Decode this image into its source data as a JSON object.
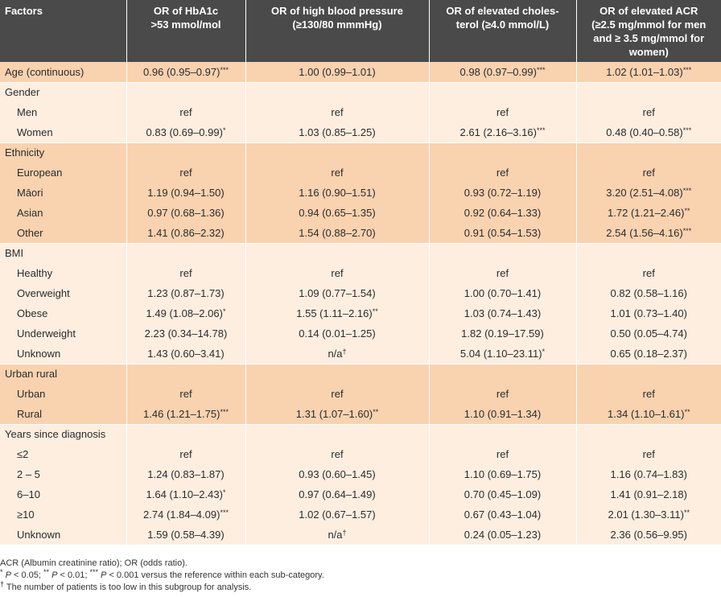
{
  "header": {
    "factors": "Factors",
    "col1": [
      "OR of HbA1c",
      ">53 mmol/mol"
    ],
    "col2": [
      "OR of high blood pressure",
      "(≥130/80 mmmHg)"
    ],
    "col3": [
      "OR of elevated choles-",
      "terol (≥4.0 mmol/L)"
    ],
    "col4": [
      "OR of elevated ACR",
      "(≥2.5 mg/mmol for men",
      "and ≥ 3.5 mg/mmol for",
      "women)"
    ]
  },
  "rows": [
    {
      "label": "Age (continuous)",
      "indent": false,
      "band": "dark",
      "cells": [
        {
          "v": "0.96 (0.95–0.97)",
          "s": "***"
        },
        {
          "v": "1.00 (0.99–1.01)",
          "s": ""
        },
        {
          "v": "0.98 (0.97–0.99)",
          "s": "***"
        },
        {
          "v": "1.02 (1.01–1.03)",
          "s": "***"
        }
      ]
    },
    {
      "label": "Gender",
      "indent": false,
      "band": "light",
      "cells": null
    },
    {
      "label": "Men",
      "indent": true,
      "band": "light",
      "cells": [
        {
          "v": "ref",
          "s": ""
        },
        {
          "v": "ref",
          "s": ""
        },
        {
          "v": "ref",
          "s": ""
        },
        {
          "v": "ref",
          "s": ""
        }
      ]
    },
    {
      "label": "Women",
      "indent": true,
      "band": "light",
      "cells": [
        {
          "v": "0.83 (0.69–0.99)",
          "s": "*"
        },
        {
          "v": "1.03 (0.85–1.25)",
          "s": ""
        },
        {
          "v": "2.61 (2.16–3.16)",
          "s": "***"
        },
        {
          "v": "0.48 (0.40–0.58)",
          "s": "***"
        }
      ]
    },
    {
      "label": "Ethnicity",
      "indent": false,
      "band": "dark",
      "cells": null
    },
    {
      "label": "European",
      "indent": true,
      "band": "dark",
      "cells": [
        {
          "v": "ref",
          "s": ""
        },
        {
          "v": "ref",
          "s": ""
        },
        {
          "v": "ref",
          "s": ""
        },
        {
          "v": "ref",
          "s": ""
        }
      ]
    },
    {
      "label": "Māori",
      "indent": true,
      "band": "dark",
      "cells": [
        {
          "v": "1.19 (0.94–1.50)",
          "s": ""
        },
        {
          "v": "1.16 (0.90–1.51)",
          "s": ""
        },
        {
          "v": "0.93 (0.72–1.19)",
          "s": ""
        },
        {
          "v": "3.20 (2.51–4.08)",
          "s": "***"
        }
      ]
    },
    {
      "label": "Asian",
      "indent": true,
      "band": "dark",
      "cells": [
        {
          "v": "0.97 (0.68–1.36)",
          "s": ""
        },
        {
          "v": "0.94 (0.65–1.35)",
          "s": ""
        },
        {
          "v": "0.92 (0.64–1.33)",
          "s": ""
        },
        {
          "v": "1.72 (1.21–2.46)",
          "s": "**"
        }
      ]
    },
    {
      "label": "Other",
      "indent": true,
      "band": "dark",
      "cells": [
        {
          "v": "1.41 (0.86–2.32)",
          "s": ""
        },
        {
          "v": "1.54 (0.88–2.70)",
          "s": ""
        },
        {
          "v": "0.91 (0.54–1.53)",
          "s": ""
        },
        {
          "v": "2.54 (1.56–4.16)",
          "s": "***"
        }
      ]
    },
    {
      "label": "BMI",
      "indent": false,
      "band": "light",
      "cells": null
    },
    {
      "label": "Healthy",
      "indent": true,
      "band": "light",
      "cells": [
        {
          "v": "ref",
          "s": ""
        },
        {
          "v": "ref",
          "s": ""
        },
        {
          "v": "ref",
          "s": ""
        },
        {
          "v": "ref",
          "s": ""
        }
      ]
    },
    {
      "label": "Overweight",
      "indent": true,
      "band": "light",
      "cells": [
        {
          "v": "1.23 (0.87–1.73)",
          "s": ""
        },
        {
          "v": "1.09 (0.77–1.54)",
          "s": ""
        },
        {
          "v": "1.00 (0.70–1.41)",
          "s": ""
        },
        {
          "v": "0.82 (0.58–1.16)",
          "s": ""
        }
      ]
    },
    {
      "label": "Obese",
      "indent": true,
      "band": "light",
      "cells": [
        {
          "v": "1.49 (1.08–2.06)",
          "s": "*"
        },
        {
          "v": "1.55 (1.11–2.16)",
          "s": "**"
        },
        {
          "v": "1.03 (0.74–1.43)",
          "s": ""
        },
        {
          "v": "1.01 (0.73–1.40)",
          "s": ""
        }
      ]
    },
    {
      "label": "Underweight",
      "indent": true,
      "band": "light",
      "cells": [
        {
          "v": "2.23 (0.34–14.78)",
          "s": ""
        },
        {
          "v": "0.14 (0.01–1.25)",
          "s": ""
        },
        {
          "v": "1.82 (0.19–17.59)",
          "s": ""
        },
        {
          "v": "0.50 (0.05–4.74)",
          "s": ""
        }
      ]
    },
    {
      "label": "Unknown",
      "indent": true,
      "band": "light",
      "cells": [
        {
          "v": "1.43 (0.60–3.41)",
          "s": ""
        },
        {
          "v": "n/a",
          "s": "†"
        },
        {
          "v": "5.04 (1.10–23.11)",
          "s": "*"
        },
        {
          "v": "0.65 (0.18–2.37)",
          "s": ""
        }
      ]
    },
    {
      "label": "Urban rural",
      "indent": false,
      "band": "dark",
      "cells": null
    },
    {
      "label": "Urban",
      "indent": true,
      "band": "dark",
      "cells": [
        {
          "v": "ref",
          "s": ""
        },
        {
          "v": "ref",
          "s": ""
        },
        {
          "v": "ref",
          "s": ""
        },
        {
          "v": "ref",
          "s": ""
        }
      ]
    },
    {
      "label": "Rural",
      "indent": true,
      "band": "dark",
      "cells": [
        {
          "v": "1.46 (1.21–1.75)",
          "s": "***"
        },
        {
          "v": "1.31 (1.07–1.60)",
          "s": "**"
        },
        {
          "v": "1.10 (0.91–1.34)",
          "s": ""
        },
        {
          "v": "1.34 (1.10–1.61)",
          "s": "**"
        }
      ]
    },
    {
      "label": "Years since diagnosis",
      "indent": false,
      "band": "light",
      "cells": null
    },
    {
      "label": "≤2",
      "indent": true,
      "band": "light",
      "cells": [
        {
          "v": "ref",
          "s": ""
        },
        {
          "v": "ref",
          "s": ""
        },
        {
          "v": "ref",
          "s": ""
        },
        {
          "v": "ref",
          "s": ""
        }
      ]
    },
    {
      "label": "2 – 5",
      "indent": true,
      "band": "light",
      "cells": [
        {
          "v": "1.24 (0.83–1.87)",
          "s": ""
        },
        {
          "v": "0.93 (0.60–1.45)",
          "s": ""
        },
        {
          "v": "1.10 (0.69–1.75)",
          "s": ""
        },
        {
          "v": "1.16 (0.74–1.83)",
          "s": ""
        }
      ]
    },
    {
      "label": "6–10",
      "indent": true,
      "band": "light",
      "cells": [
        {
          "v": "1.64 (1.10–2.43)",
          "s": "*"
        },
        {
          "v": "0.97 (0.64–1.49)",
          "s": ""
        },
        {
          "v": "0.70 (0.45–1.09)",
          "s": ""
        },
        {
          "v": "1.41 (0.91–2.18)",
          "s": ""
        }
      ]
    },
    {
      "label": "≥10",
      "indent": true,
      "band": "light",
      "cells": [
        {
          "v": "2.74 (1.84–4.09)",
          "s": "***"
        },
        {
          "v": "1.02 (0.67–1.57)",
          "s": ""
        },
        {
          "v": "0.67 (0.43–1.04)",
          "s": ""
        },
        {
          "v": "2.01 (1.30–3.11)",
          "s": "**"
        }
      ]
    },
    {
      "label": "Unknown",
      "indent": true,
      "band": "light",
      "cells": [
        {
          "v": "1.59 (0.58–4.39)",
          "s": ""
        },
        {
          "v": "n/a",
          "s": "†"
        },
        {
          "v": "0.24 (0.05–1.23)",
          "s": ""
        },
        {
          "v": "2.36 (0.56–9.95)",
          "s": ""
        }
      ]
    }
  ],
  "notes": {
    "line1": "ACR (Albumin creatinine ratio); OR (odds ratio).",
    "line2": {
      "s1": "*",
      "p1": "P",
      "t1": " < 0.05; ",
      "s2": "**",
      "p2": "P",
      "t2": " < 0.01; ",
      "s3": "***",
      "p3": "P",
      "t3": " < 0.001 versus the reference within each sub-category."
    },
    "line3": {
      "mark": "†",
      "text": " The number of patients is too low in this subgroup for analysis."
    }
  },
  "colors": {
    "header_bg": "#4a4a4a",
    "band_light": "#fdeee0",
    "band_dark": "#f9d2b0"
  }
}
